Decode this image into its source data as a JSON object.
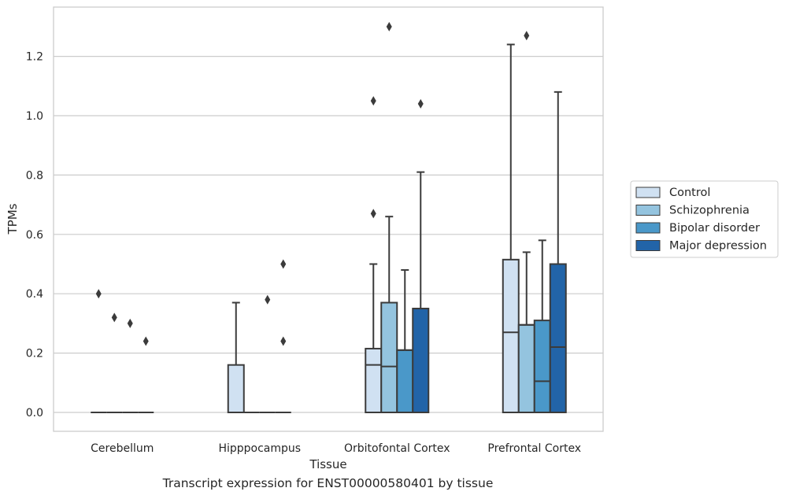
{
  "chart_data": {
    "type": "box",
    "xlabel": "Tissue",
    "ylabel": "TPMs",
    "caption": "Transcript expression for ENST00000580401 by tissue",
    "ylim": [
      -0.065,
      1.37
    ],
    "yticks": [
      0.0,
      0.2,
      0.4,
      0.6,
      0.8,
      1.0,
      1.2
    ],
    "ytick_labels": [
      "0.0",
      "0.2",
      "0.4",
      "0.6",
      "0.8",
      "1.0",
      "1.2"
    ],
    "grid": "horizontal",
    "legend_position": "right",
    "categories": [
      "Cerebellum",
      "Hipppocampus",
      "Orbitofontal Cortex",
      "Prefrontal Cortex"
    ],
    "series": [
      {
        "name": "Control",
        "color": "#d0e1f2",
        "boxes": [
          {
            "q1": 0,
            "median": 0,
            "q3": 0,
            "whisker_low": 0,
            "whisker_high": 0,
            "fliers": [
              0.4
            ]
          },
          {
            "q1": 0,
            "median": 0,
            "q3": 0.16,
            "whisker_low": 0,
            "whisker_high": 0.37,
            "fliers": []
          },
          {
            "q1": 0,
            "median": 0.16,
            "q3": 0.215,
            "whisker_low": 0,
            "whisker_high": 0.5,
            "fliers": [
              0.67,
              1.05
            ]
          },
          {
            "q1": 0,
            "median": 0.27,
            "q3": 0.515,
            "whisker_low": 0,
            "whisker_high": 1.24,
            "fliers": []
          }
        ]
      },
      {
        "name": "Schizophrenia",
        "color": "#94c4df",
        "boxes": [
          {
            "q1": 0,
            "median": 0,
            "q3": 0,
            "whisker_low": 0,
            "whisker_high": 0,
            "fliers": [
              0.32
            ]
          },
          {
            "q1": 0,
            "median": 0,
            "q3": 0,
            "whisker_low": 0,
            "whisker_high": 0,
            "fliers": []
          },
          {
            "q1": 0,
            "median": 0.155,
            "q3": 0.37,
            "whisker_low": 0,
            "whisker_high": 0.66,
            "fliers": [
              1.3
            ]
          },
          {
            "q1": 0,
            "median": 0.295,
            "q3": 0.295,
            "whisker_low": 0,
            "whisker_high": 0.54,
            "fliers": [
              1.27
            ]
          }
        ]
      },
      {
        "name": "Bipolar disorder",
        "color": "#4a98c9",
        "boxes": [
          {
            "q1": 0,
            "median": 0,
            "q3": 0,
            "whisker_low": 0,
            "whisker_high": 0,
            "fliers": [
              0.3
            ]
          },
          {
            "q1": 0,
            "median": 0,
            "q3": 0,
            "whisker_low": 0,
            "whisker_high": 0,
            "fliers": [
              0.38
            ]
          },
          {
            "q1": 0,
            "median": 0.21,
            "q3": 0.21,
            "whisker_low": 0,
            "whisker_high": 0.48,
            "fliers": []
          },
          {
            "q1": 0,
            "median": 0.105,
            "q3": 0.31,
            "whisker_low": 0,
            "whisker_high": 0.58,
            "fliers": []
          }
        ]
      },
      {
        "name": "Major depression",
        "color": "#2264a8",
        "boxes": [
          {
            "q1": 0,
            "median": 0,
            "q3": 0,
            "whisker_low": 0,
            "whisker_high": 0,
            "fliers": [
              0.24
            ]
          },
          {
            "q1": 0,
            "median": 0,
            "q3": 0,
            "whisker_low": 0,
            "whisker_high": 0,
            "fliers": [
              0.24,
              0.5
            ]
          },
          {
            "q1": 0,
            "median": 0.35,
            "q3": 0.35,
            "whisker_low": 0,
            "whisker_high": 0.81,
            "fliers": [
              1.04
            ]
          },
          {
            "q1": 0,
            "median": 0.22,
            "q3": 0.5,
            "whisker_low": 0,
            "whisker_high": 1.08,
            "fliers": []
          }
        ]
      }
    ]
  }
}
